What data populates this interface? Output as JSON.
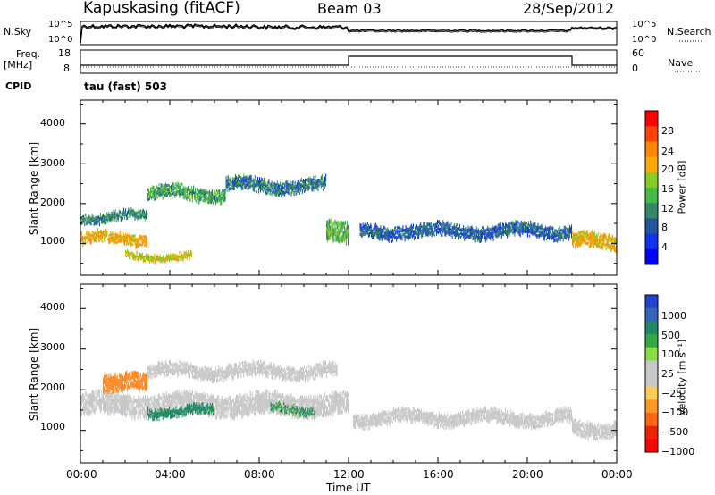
{
  "header": {
    "station": "Kapuskasing (fitACF)",
    "beam": "Beam 03",
    "date": "28/Sep/2012"
  },
  "status_panel": {
    "nsky_label": "N.Sky",
    "nsearch_label": "N.Search",
    "freq_label": "Freq.",
    "freq_unit": "[MHz]",
    "nave_label": "Nave",
    "cpid_label": "CPID",
    "cpid_value": "tau (fast) 503",
    "noise_ticks": [
      "10^5",
      "10^0"
    ],
    "freq_ticks": [
      "18",
      "8"
    ],
    "nave_ticks": [
      "60",
      "0"
    ]
  },
  "axes": {
    "ylabel": "Slant Range [km]",
    "xlabel": "Time UT",
    "xticks": [
      "00:00",
      "04:00",
      "08:00",
      "12:00",
      "16:00",
      "20:00",
      "00:00"
    ],
    "yticks": [
      "1000",
      "2000",
      "3000",
      "4000"
    ]
  },
  "power_colorbar": {
    "label": "Power [dB]",
    "ticks": [
      "28",
      "24",
      "20",
      "16",
      "12",
      "8",
      "4"
    ],
    "colors": [
      "#ff0000",
      "#ff4400",
      "#ff8800",
      "#ffaa00",
      "#88cc22",
      "#44bb44",
      "#338866",
      "#225599",
      "#1133ee",
      "#0000ff"
    ]
  },
  "velocity_colorbar": {
    "label": "Velocity [m s⁻¹]",
    "ticks": [
      "1000",
      "500",
      "100",
      "25",
      "−25",
      "−100",
      "−500",
      "−1000"
    ],
    "colors": [
      "#2244cc",
      "#3366bb",
      "#228866",
      "#33aa44",
      "#88dd44",
      "#c8c8c8",
      "#c8c8c8",
      "#ffcc55",
      "#ff9922",
      "#ff6611",
      "#ee2200",
      "#ff0000"
    ]
  },
  "chart_data": [
    {
      "type": "heatmap",
      "name": "power",
      "x_range_hours": [
        0,
        24
      ],
      "ylim": [
        200,
        4600
      ],
      "value_range_db": [
        0,
        30
      ],
      "bands": [
        {
          "t0": 0.0,
          "t1": 3.0,
          "r_center": 1150,
          "r_width": 250,
          "value": 20
        },
        {
          "t0": 3.0,
          "t1": 6.5,
          "r_center": 2300,
          "r_width": 300,
          "value": 12
        },
        {
          "t0": 6.5,
          "t1": 11.0,
          "r_center": 2500,
          "r_width": 300,
          "value": 9
        },
        {
          "t0": 11.0,
          "t1": 12.0,
          "r_center": 1400,
          "r_width": 500,
          "value": 14
        },
        {
          "t0": 0.0,
          "t1": 3.0,
          "r_center": 1700,
          "r_width": 200,
          "value": 10
        },
        {
          "t0": 2.0,
          "t1": 5.0,
          "r_center": 700,
          "r_width": 150,
          "value": 18
        },
        {
          "t0": 12.5,
          "t1": 22.0,
          "r_center": 1350,
          "r_width": 300,
          "value": 8
        },
        {
          "t0": 22.0,
          "t1": 24.0,
          "r_center": 1100,
          "r_width": 350,
          "value": 20
        }
      ]
    },
    {
      "type": "heatmap",
      "name": "velocity",
      "x_range_hours": [
        0,
        24
      ],
      "ylim": [
        200,
        4600
      ],
      "value_range_ms": [
        -1000,
        1000
      ],
      "bands": [
        {
          "t0": 0.0,
          "t1": 12.0,
          "r_center": 1700,
          "r_width": 500,
          "value": 0
        },
        {
          "t0": 3.0,
          "t1": 11.5,
          "r_center": 2500,
          "r_width": 300,
          "value": 0
        },
        {
          "t0": 12.2,
          "t1": 22.0,
          "r_center": 1350,
          "r_width": 300,
          "value": 0
        },
        {
          "t0": 22.0,
          "t1": 24.0,
          "r_center": 1100,
          "r_width": 350,
          "value": 0
        },
        {
          "t0": 1.0,
          "t1": 3.0,
          "r_center": 2200,
          "r_width": 400,
          "value": -300
        },
        {
          "t0": 3.0,
          "t1": 6.0,
          "r_center": 1500,
          "r_width": 200,
          "value": 200
        },
        {
          "t0": 8.5,
          "t1": 10.5,
          "r_center": 1550,
          "r_width": 200,
          "value": 80
        }
      ]
    }
  ]
}
